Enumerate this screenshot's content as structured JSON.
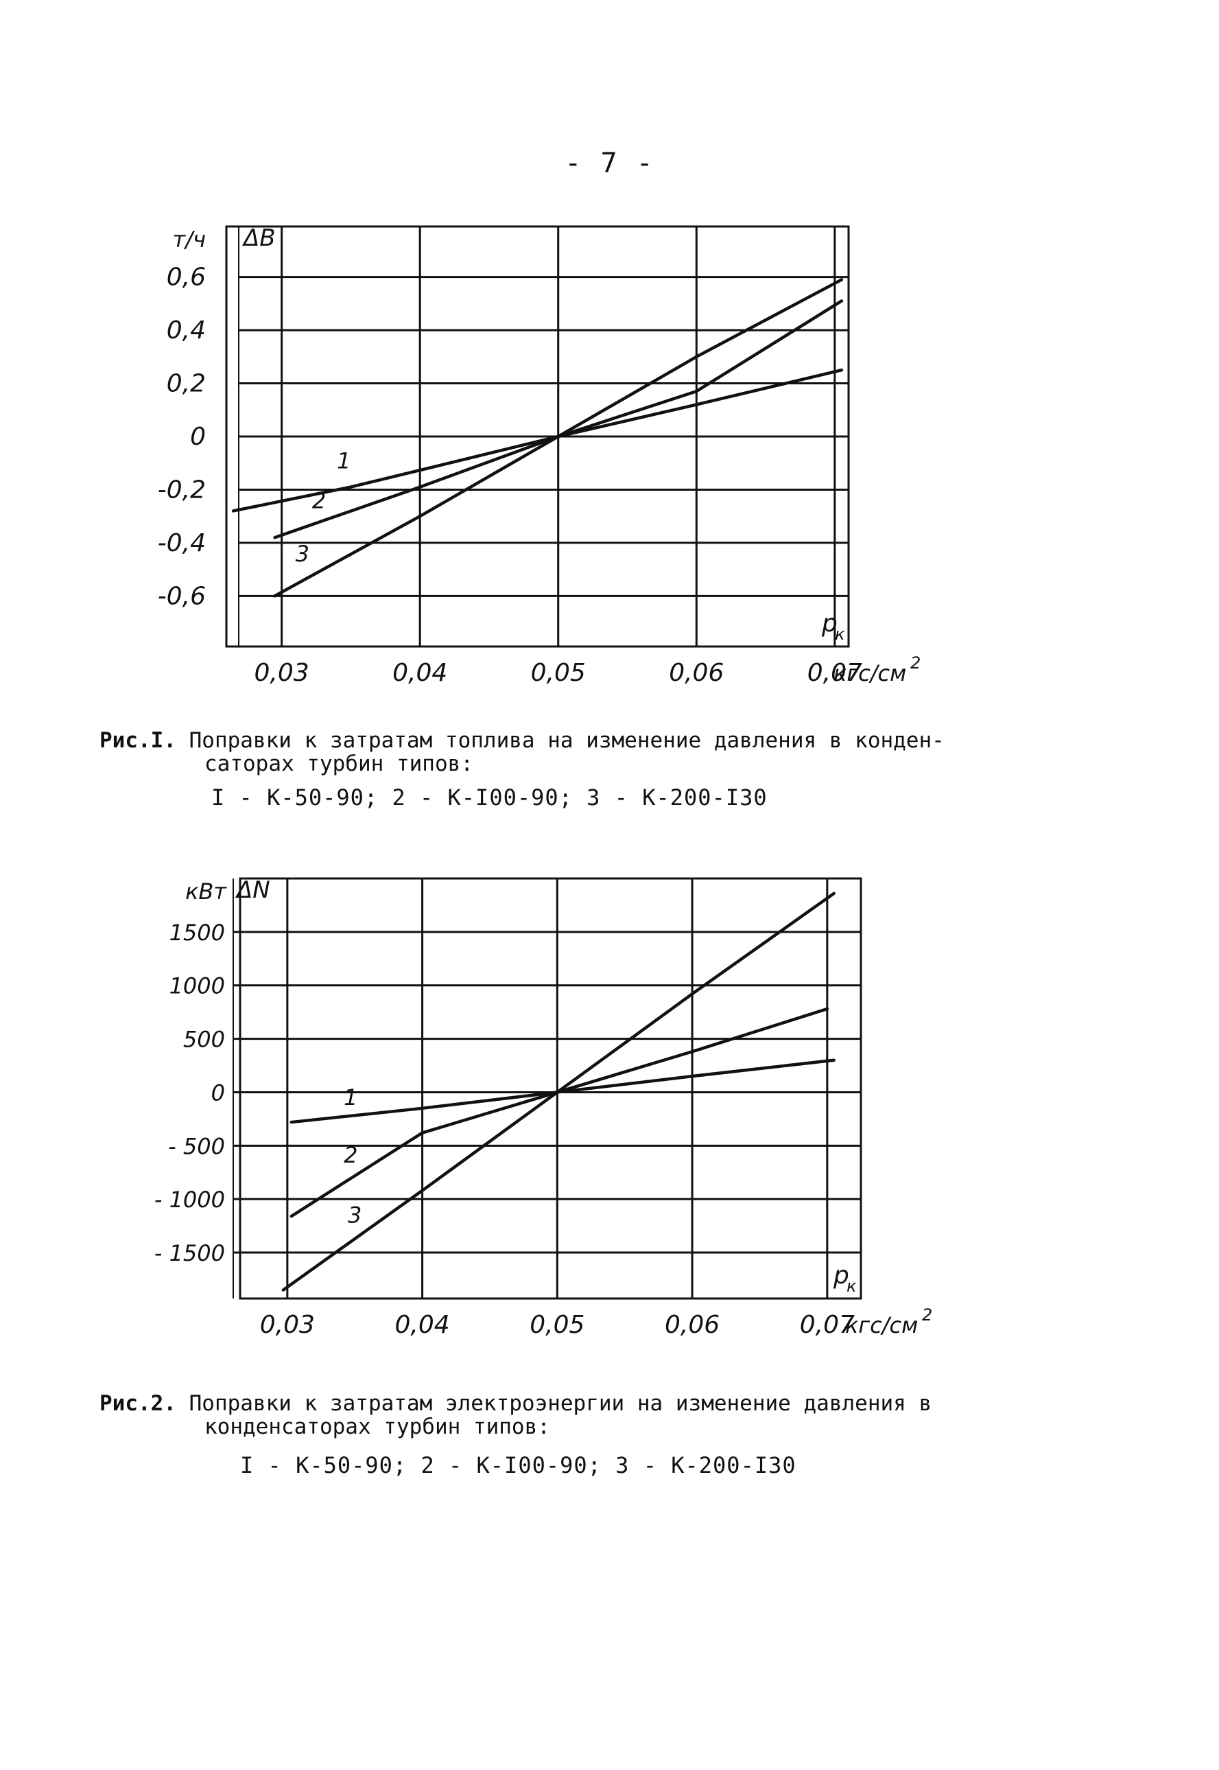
{
  "page": {
    "number": "- 7 -"
  },
  "figures": [
    {
      "caption_label": "Рис.I.",
      "caption_line1": " Поправки к затратам топлива на изменение давления в конден-",
      "caption_line2": "саторах турбин типов:",
      "legend": "I - К-50-90; 2 - К-I00-90; 3 - К-200-I30"
    },
    {
      "caption_label": "Рис.2.",
      "caption_line1": " Поправки к затратам электроэнергии на изменение давления в",
      "caption_line2": "конденсаторах турбин типов:",
      "legend": "I - К-50-90; 2 - К-I00-90; 3 - К-200-I30"
    }
  ],
  "chart_data": [
    {
      "type": "line",
      "ylabel_unit": "т/ч",
      "ylabel": "ΔB",
      "xlabel": "p",
      "xlabel_sub": "к",
      "xunit": "кгс/см",
      "xunit_sup": "2",
      "xlim": [
        0.026,
        0.071
      ],
      "ylim": [
        -0.79,
        0.79
      ],
      "xticks": [
        0.03,
        0.04,
        0.05,
        0.06,
        0.07
      ],
      "xtick_labels": [
        "0,03",
        "0,04",
        "0,05",
        "0,06",
        "0,07"
      ],
      "yticks": [
        0.6,
        0.4,
        0.2,
        0,
        -0.2,
        -0.4,
        -0.6
      ],
      "ytick_labels": [
        "0,6",
        "0,4",
        "0,2",
        "0",
        "-0,2",
        "-0,4",
        "-0,6"
      ],
      "grid": true,
      "series": [
        {
          "name": "1",
          "x": [
            0.0265,
            0.035,
            0.05,
            0.06,
            0.0705
          ],
          "y": [
            -0.28,
            -0.19,
            0,
            0.12,
            0.25
          ],
          "label_at": [
            0.0345,
            -0.12
          ]
        },
        {
          "name": "2",
          "x": [
            0.0295,
            0.04,
            0.05,
            0.06,
            0.0705
          ],
          "y": [
            -0.38,
            -0.19,
            0,
            0.17,
            0.51
          ],
          "label_at": [
            0.0327,
            -0.27
          ]
        },
        {
          "name": "3",
          "x": [
            0.0295,
            0.04,
            0.05,
            0.06,
            0.0705
          ],
          "y": [
            -0.6,
            -0.3,
            0,
            0.3,
            0.59
          ],
          "label_at": [
            0.0315,
            -0.47
          ]
        }
      ]
    },
    {
      "type": "line",
      "ylabel_unit": "кВт",
      "ylabel": "ΔN",
      "xlabel": "p",
      "xlabel_sub": "к",
      "xunit": "кгс/см",
      "xunit_sup": "2",
      "xlim": [
        0.0265,
        0.0725
      ],
      "ylim": [
        -1930,
        2000
      ],
      "xticks": [
        0.03,
        0.04,
        0.05,
        0.06,
        0.07
      ],
      "xtick_labels": [
        "0,03",
        "0,04",
        "0,05",
        "0,06",
        "0,07"
      ],
      "yticks": [
        1500,
        1000,
        500,
        0,
        -500,
        -1000,
        -1500
      ],
      "ytick_labels": [
        "1500",
        "1000",
        "500",
        "0",
        "- 500",
        "- 1000",
        "- 1500"
      ],
      "grid": true,
      "series": [
        {
          "name": "1",
          "x": [
            0.0303,
            0.04,
            0.05,
            0.06,
            0.0705
          ],
          "y": [
            -280,
            -150,
            0,
            150,
            300
          ],
          "label_at": [
            0.0347,
            -120
          ]
        },
        {
          "name": "2",
          "x": [
            0.0303,
            0.04,
            0.05,
            0.06,
            0.07
          ],
          "y": [
            -1160,
            -380,
            0,
            380,
            780
          ],
          "label_at": [
            0.0347,
            -660
          ]
        },
        {
          "name": "3",
          "x": [
            0.0297,
            0.04,
            0.05,
            0.06,
            0.0705
          ],
          "y": [
            -1850,
            -920,
            0,
            920,
            1860
          ],
          "label_at": [
            0.035,
            -1220
          ]
        }
      ]
    }
  ]
}
